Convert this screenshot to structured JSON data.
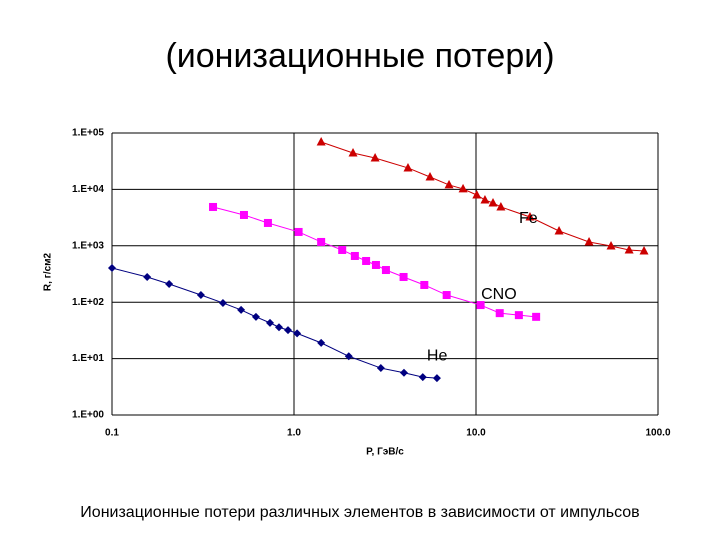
{
  "chart_data": {
    "type": "line",
    "title": "(ионизационные потери)",
    "caption": "Ионизационные потери различных элементов в зависимости от импульсов",
    "x_label": "P, ГэВ/с",
    "y_label": "R, г/см2",
    "xscale": "log",
    "yscale": "log",
    "grid": true,
    "xlim": [
      0.1,
      100
    ],
    "xticks": [
      0.1,
      {
        "value": 1,
        "label": "1.0"
      },
      {
        "value": 10,
        "label": "10.0"
      },
      {
        "value": 100,
        "label": "100.0"
      }
    ],
    "ylim": [
      1,
      100000
    ],
    "yticks": [
      {
        "value": 1,
        "label": "1.E+00"
      },
      {
        "value": 10,
        "label": "1.E+01"
      },
      {
        "value": 100,
        "label": "1.E+02"
      },
      {
        "value": 1000,
        "label": "1.E+03"
      },
      {
        "value": 10000,
        "label": "1.E+04"
      },
      {
        "value": 100000,
        "label": "1.E+05"
      }
    ],
    "series": [
      {
        "name": "He",
        "color": "#000080",
        "marker": "diamond",
        "x": [
          0.1,
          0.156,
          0.206,
          0.308,
          0.407,
          0.512,
          0.618,
          0.738,
          0.827,
          0.927,
          1.04,
          1.41,
          2.0,
          3.0,
          4.02,
          5.1,
          6.1
        ],
        "values": [
          404,
          280,
          210,
          134,
          97,
          73,
          55,
          43,
          36,
          32,
          28,
          19,
          11,
          6.8,
          5.6,
          4.7,
          4.5
        ]
      },
      {
        "name": "CNO",
        "color": "#ff00ff",
        "marker": "square",
        "x": [
          0.359,
          0.531,
          0.719,
          1.06,
          1.41,
          1.84,
          2.16,
          2.49,
          2.82,
          3.2,
          4.0,
          5.2,
          6.9,
          10.6,
          13.5,
          17.2,
          21.4
        ],
        "values": [
          4880,
          3520,
          2540,
          1760,
          1170,
          843,
          660,
          538,
          457,
          372,
          280,
          202,
          134,
          89,
          64,
          59,
          55
        ]
      },
      {
        "name": "Fe",
        "color": "#cc0000",
        "marker": "triangle",
        "x": [
          1.41,
          2.11,
          2.79,
          4.23,
          5.59,
          7.11,
          8.49,
          10.1,
          11.2,
          12.4,
          13.7,
          19.8,
          28.6,
          41.8,
          55.2,
          69.4,
          83.8
        ],
        "values": [
          69200,
          44200,
          36000,
          24000,
          16600,
          12000,
          10200,
          7960,
          6490,
          5740,
          4880,
          3240,
          1830,
          1170,
          991,
          843,
          809
        ]
      }
    ]
  }
}
